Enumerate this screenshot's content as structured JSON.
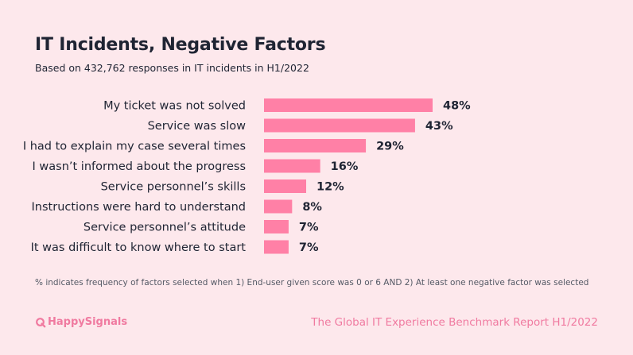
{
  "header": {
    "title": "IT Incidents, Negative Factors",
    "subtitle": "Based on 432,762 responses in IT incidents in H1/2022"
  },
  "chart_data": {
    "type": "bar",
    "orientation": "horizontal",
    "title": "IT Incidents, Negative Factors",
    "subtitle": "Based on 432,762 responses in IT incidents in H1/2022",
    "categories": [
      "My ticket was not solved",
      "Service was slow",
      "I had to explain my case several times",
      "I wasn’t informed about the progress",
      "Service personnel’s skills",
      "Instructions were hard to understand",
      "Service personnel’s attitude",
      "It was difficult to know where to start"
    ],
    "values": [
      48,
      43,
      29,
      16,
      12,
      8,
      7,
      7
    ],
    "value_labels": [
      "48%",
      "43%",
      "29%",
      "16%",
      "12%",
      "8%",
      "7%",
      "7%"
    ],
    "unit": "%",
    "xlim": [
      0,
      48
    ],
    "grid": false,
    "colors": {
      "bar": "#ff80a6"
    }
  },
  "footer": {
    "footnote": "% indicates frequency of factors selected when 1) End-user given score was 0 or 6 AND 2) At least one negative factor was selected",
    "brand_name": "HappySignals",
    "brand_icon": "q-logo-icon",
    "report_name": "The Global IT Experience Benchmark Report H1/2022"
  },
  "colors": {
    "background": "#fde8ec",
    "text": "#1f2433",
    "accent": "#f07aa0"
  }
}
